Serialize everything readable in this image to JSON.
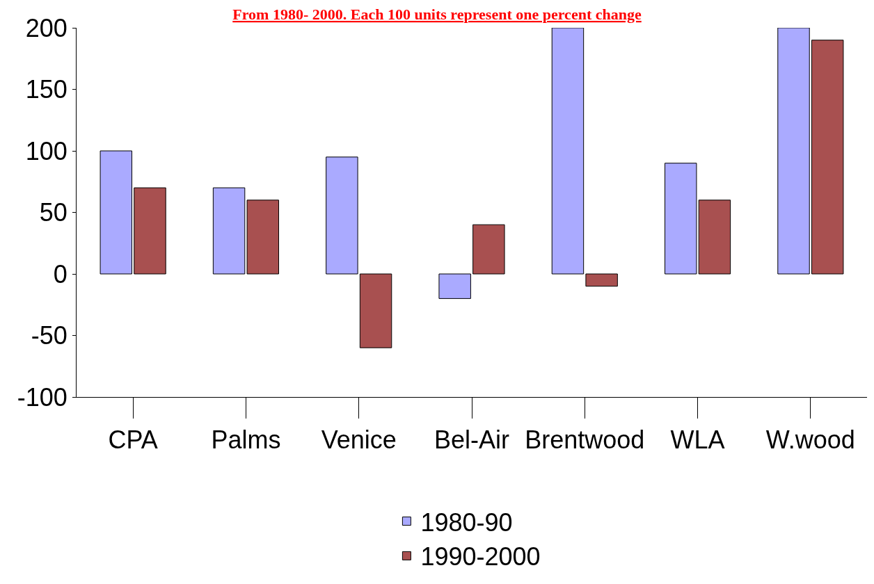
{
  "chart_data": {
    "type": "bar",
    "title": "From 1980- 2000. Each 100 units represent one percent change",
    "categories": [
      "CPA",
      "Palms",
      "Venice",
      "Bel-Air",
      "Brentwood",
      "WLA",
      "W.wood"
    ],
    "series": [
      {
        "name": "1980-90",
        "color": "#aaaaff",
        "values": [
          100,
          70,
          95,
          -20,
          200,
          90,
          200
        ]
      },
      {
        "name": "1990-2000",
        "color": "#a85050",
        "values": [
          70,
          60,
          -60,
          40,
          -10,
          60,
          190
        ]
      }
    ],
    "ylim": [
      -100,
      200
    ],
    "yticks": [
      -100,
      -50,
      0,
      50,
      100,
      150,
      200
    ],
    "legend": "bottom"
  }
}
